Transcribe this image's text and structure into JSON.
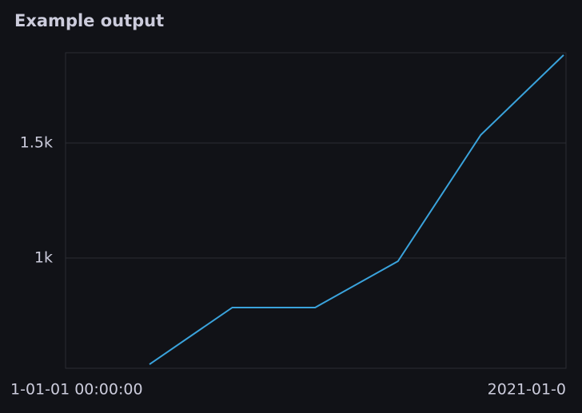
{
  "chart_data": {
    "type": "line",
    "title": "Example output",
    "categories": [
      null,
      null,
      null,
      null,
      null,
      null
    ],
    "x_tick_labels": [
      "1-01-01 00:00:00",
      "2021-01-0"
    ],
    "series": [
      {
        "name": null,
        "color": "#3aa3dc",
        "values": [
          538,
          785,
          785,
          986,
          1535,
          1882
        ]
      }
    ],
    "ylim": [
      521,
      1892
    ],
    "yticks": [
      {
        "value": 1000,
        "label": "1k"
      },
      {
        "value": 1500,
        "label": "1.5k"
      }
    ],
    "grid": true
  }
}
